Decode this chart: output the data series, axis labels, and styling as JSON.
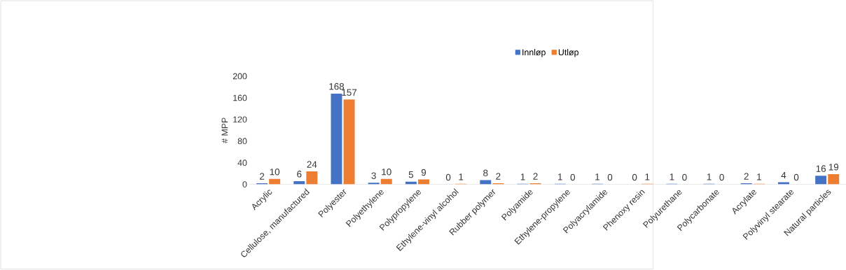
{
  "chart_data": {
    "type": "bar",
    "ylabel": "# MPP",
    "categories": [
      "Acrylic",
      "Cellulose, manufactured",
      "Polyester",
      "Polyethylene",
      "Polypropylene",
      "Ethylene-vinyl alcohol",
      "Rubber polymer",
      "Polyamide",
      "Ethylene-propylene",
      "Polyacrylamide",
      "Phenoxy resin",
      "Polyurethane",
      "Polycarbonate",
      "Acrylate",
      "Polyvinyl stearate",
      "Natural particles"
    ],
    "series": [
      {
        "name": "Innløp",
        "color": "#4472c4",
        "values": [
          2,
          6,
          168,
          3,
          5,
          0,
          8,
          1,
          1,
          1,
          0,
          1,
          1,
          2,
          4,
          16
        ]
      },
      {
        "name": "Utløp",
        "color": "#ed7d31",
        "values": [
          10,
          24,
          157,
          10,
          9,
          1,
          2,
          2,
          0,
          0,
          1,
          0,
          0,
          1,
          0,
          19
        ]
      }
    ],
    "ylim": [
      0,
      200
    ],
    "yticks": [
      0,
      40,
      80,
      120,
      160,
      200
    ],
    "data_labels": true,
    "grid": false,
    "legend": "top"
  }
}
